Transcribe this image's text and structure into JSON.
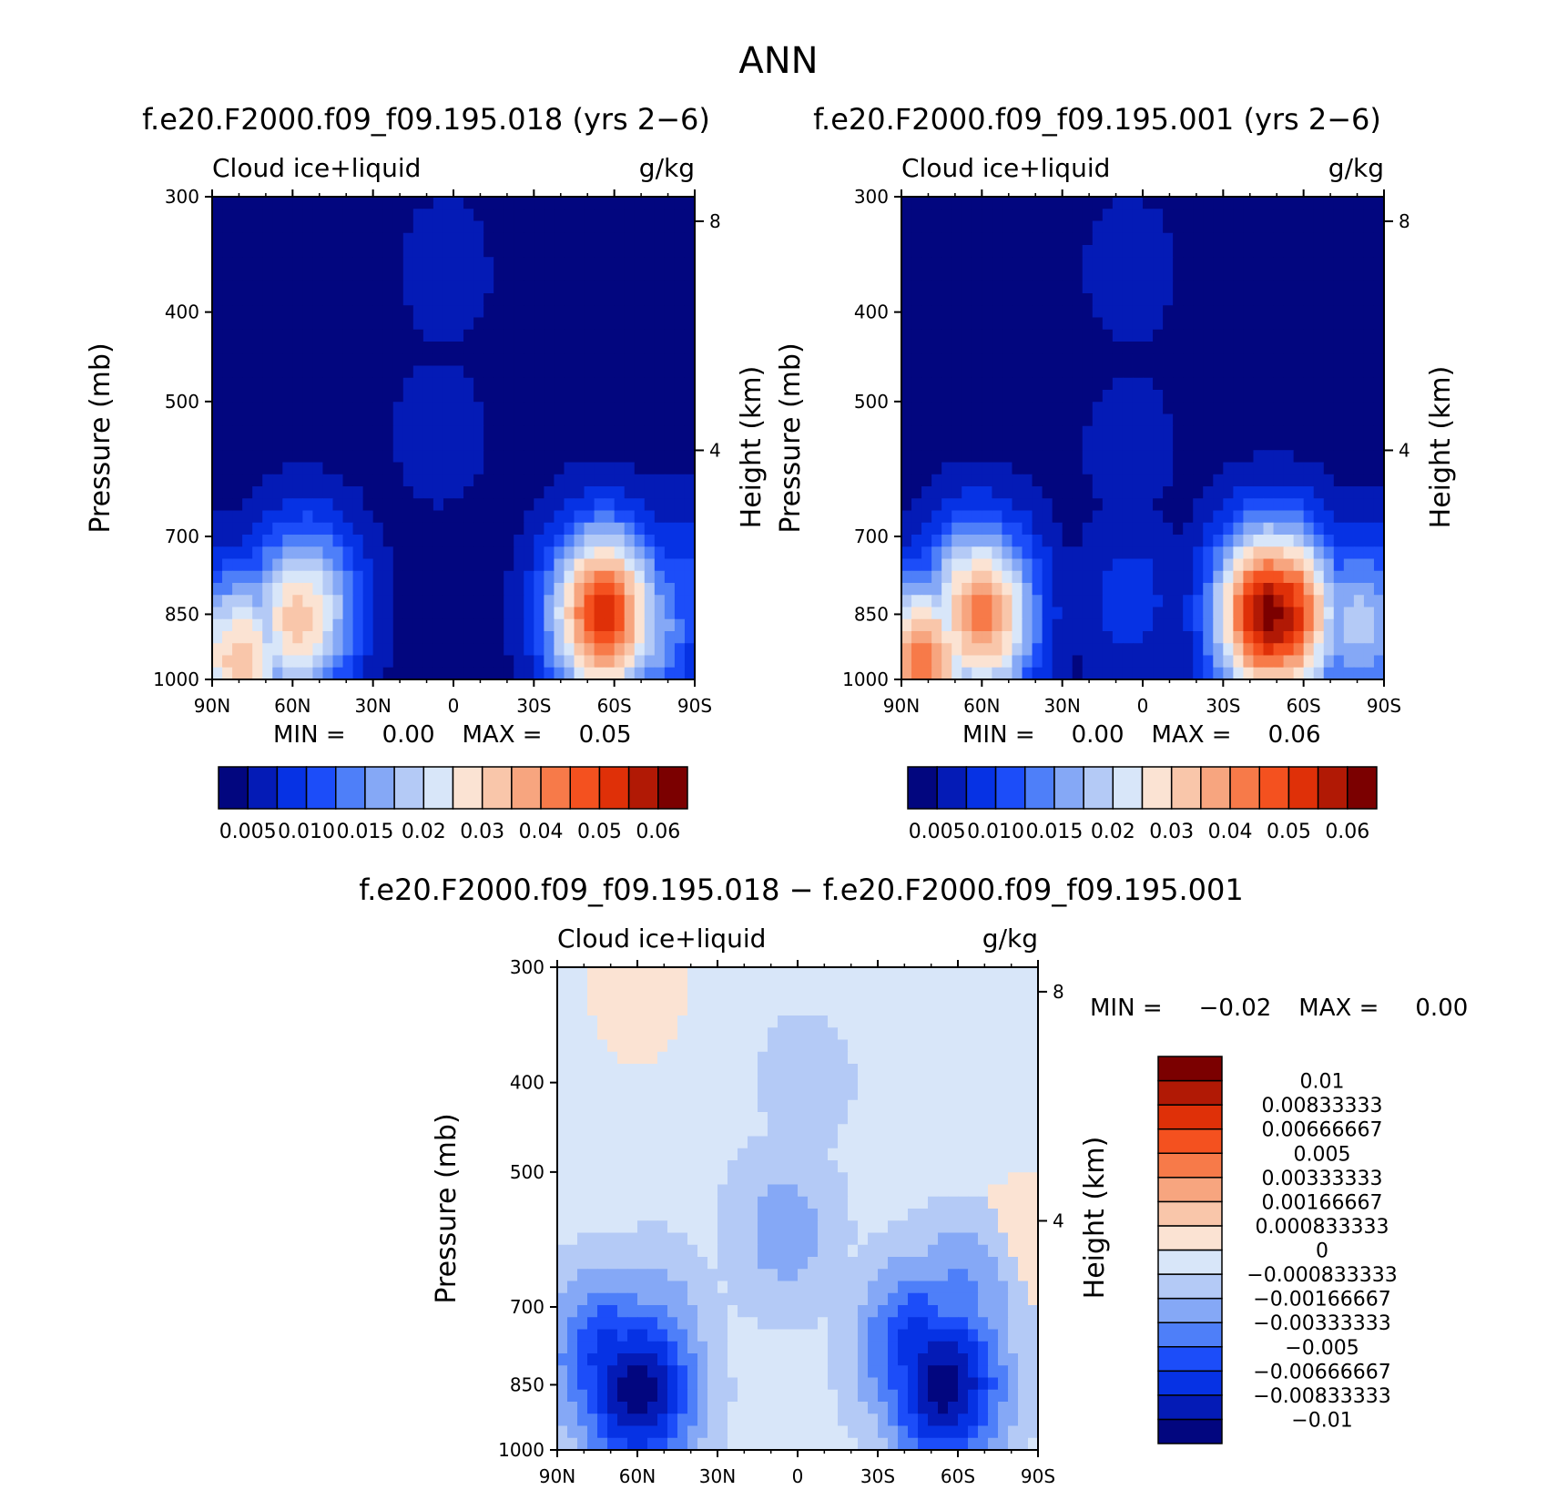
{
  "page_title": "ANN",
  "chart_data": [
    {
      "type": "heatmap",
      "title": "f.e20.F2000.f09_f09.195.018 (yrs 2−6)",
      "variable": "Cloud ice+liquid",
      "units": "g/kg",
      "ylabel": "Pressure (mb)",
      "ylabel_right": "Height (km)",
      "x_ticks": [
        "90N",
        "60N",
        "30N",
        "0",
        "30S",
        "60S",
        "90S"
      ],
      "y_ticks": [
        "300",
        "400",
        "500",
        "700",
        "850",
        "1000"
      ],
      "y2_ticks": [
        "8",
        "4"
      ],
      "min_text": "MIN =",
      "min_value": "0.00",
      "max_text": "MAX =",
      "max_value": "0.05",
      "colorbar_labels": [
        "0.005",
        "0.010",
        "0.015",
        "0.02",
        "0.03",
        "0.04",
        "0.05",
        "0.06"
      ],
      "colors": [
        "#02067f",
        "#041bb6",
        "#0632e4",
        "#1c4df9",
        "#4e7ff9",
        "#85a8f6",
        "#b4caf6",
        "#d8e6f9",
        "#fbe3d3",
        "#f9c6aa",
        "#f7a57f",
        "#f77a49",
        "#f4511f",
        "#df3008",
        "#b11905",
        "#7b0000"
      ],
      "features": [
        {
          "x": -55,
          "p": 840,
          "level": 8
        },
        {
          "x": -58,
          "p": 860,
          "level": 9
        },
        {
          "x": -80,
          "p": 950,
          "level": 9
        },
        {
          "x": -58,
          "p": 980,
          "level": 6
        },
        {
          "x": -3,
          "p": 360,
          "level": 1
        },
        {
          "x": -5,
          "p": 540,
          "level": 1
        },
        {
          "x": 55,
          "p": 850,
          "level": 12
        },
        {
          "x": 56,
          "p": 850,
          "level": 13
        },
        {
          "x": 70,
          "p": 880,
          "level": 6
        },
        {
          "x": 84,
          "p": 800,
          "level": 3
        }
      ]
    },
    {
      "type": "heatmap",
      "title": "f.e20.F2000.f09_f09.195.001 (yrs 2−6)",
      "variable": "Cloud ice+liquid",
      "units": "g/kg",
      "ylabel": "Pressure (mb)",
      "ylabel_right": "Height (km)",
      "x_ticks": [
        "90N",
        "60N",
        "30N",
        "0",
        "30S",
        "60S",
        "90S"
      ],
      "y_ticks": [
        "300",
        "400",
        "500",
        "700",
        "850",
        "1000"
      ],
      "y2_ticks": [
        "8",
        "4"
      ],
      "min_text": "MIN =",
      "min_value": "0.00",
      "max_text": "MAX =",
      "max_value": "0.06",
      "colorbar_labels": [
        "0.005",
        "0.010",
        "0.015",
        "0.02",
        "0.03",
        "0.04",
        "0.05",
        "0.06"
      ],
      "colors": [
        "#02067f",
        "#041bb6",
        "#0632e4",
        "#1c4df9",
        "#4e7ff9",
        "#85a8f6",
        "#b4caf6",
        "#d8e6f9",
        "#fbe3d3",
        "#f9c6aa",
        "#f7a57f",
        "#f77a49",
        "#f4511f",
        "#df3008",
        "#b11905",
        "#7b0000"
      ],
      "features": [
        {
          "x": -62,
          "p": 840,
          "level": 10
        },
        {
          "x": -60,
          "p": 850,
          "level": 11
        },
        {
          "x": -82,
          "p": 960,
          "level": 11
        },
        {
          "x": -5,
          "p": 360,
          "level": 1
        },
        {
          "x": -5,
          "p": 560,
          "level": 1
        },
        {
          "x": -5,
          "p": 820,
          "level": 2
        },
        {
          "x": 50,
          "p": 840,
          "level": 13
        },
        {
          "x": 52,
          "p": 850,
          "level": 14
        },
        {
          "x": 47,
          "p": 850,
          "level": 15
        },
        {
          "x": 80,
          "p": 870,
          "level": 6
        }
      ]
    },
    {
      "type": "heatmap",
      "title": "f.e20.F2000.f09_f09.195.018 − f.e20.F2000.f09_f09.195.001",
      "variable": "Cloud ice+liquid",
      "units": "g/kg",
      "ylabel": "Pressure (mb)",
      "ylabel_right": "Height (km)",
      "x_ticks": [
        "90N",
        "60N",
        "30N",
        "0",
        "30S",
        "60S",
        "90S"
      ],
      "y_ticks": [
        "300",
        "400",
        "500",
        "700",
        "850",
        "1000"
      ],
      "y2_ticks": [
        "8",
        "4"
      ],
      "min_text": "MIN =",
      "min_value": "−0.02",
      "max_text": "MAX =",
      "max_value": "0.00",
      "colorbar_labels": [
        "0.01",
        "0.00833333",
        "0.00666667",
        "0.005",
        "0.00333333",
        "0.00166667",
        "0.000833333",
        "0",
        "−0.000833333",
        "−0.00166667",
        "−0.00333333",
        "−0.005",
        "−0.00666667",
        "−0.00833333",
        "−0.01"
      ],
      "colors": [
        "#02067f",
        "#041bb6",
        "#0632e4",
        "#1c4df9",
        "#4e7ff9",
        "#85a8f6",
        "#b4caf6",
        "#d8e6f9",
        "#fbe3d3",
        "#f9c6aa",
        "#f7a57f",
        "#f77a49",
        "#f4511f",
        "#df3008",
        "#b11905",
        "#7b0000"
      ],
      "features": [
        {
          "x": -60,
          "p": 860,
          "level": 0
        },
        {
          "x": -70,
          "p": 800,
          "level": 2
        },
        {
          "x": -55,
          "p": 760,
          "level": 4
        },
        {
          "x": -5,
          "p": 580,
          "level": 5
        },
        {
          "x": 3,
          "p": 400,
          "level": 6
        },
        {
          "x": 55,
          "p": 850,
          "level": 0
        },
        {
          "x": 45,
          "p": 780,
          "level": 2
        },
        {
          "x": 60,
          "p": 700,
          "level": 4
        },
        {
          "x": -60,
          "p": 320,
          "level": 8
        },
        {
          "x": 85,
          "p": 600,
          "level": 8
        }
      ]
    }
  ]
}
